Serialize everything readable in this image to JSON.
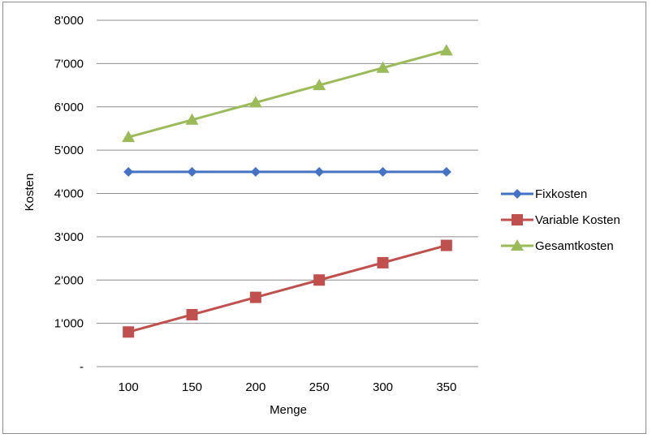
{
  "chart_data": {
    "type": "line",
    "categories": [
      "100",
      "150",
      "200",
      "250",
      "300",
      "350"
    ],
    "series": [
      {
        "name": "Fixkosten",
        "values": [
          4500,
          4500,
          4500,
          4500,
          4500,
          4500
        ],
        "color": "#4472c4",
        "marker": "diamond"
      },
      {
        "name": "Variable Kosten",
        "values": [
          800,
          1200,
          1600,
          2000,
          2400,
          2800
        ],
        "color": "#c0504d",
        "marker": "square"
      },
      {
        "name": "Gesamtkosten",
        "values": [
          5300,
          5700,
          6100,
          6500,
          6900,
          7300
        ],
        "color": "#9bbb59",
        "marker": "triangle"
      }
    ],
    "xlabel": "Menge",
    "ylabel": "Kosten",
    "ylim": [
      0,
      8000
    ],
    "yticks": [
      0,
      1000,
      2000,
      3000,
      4000,
      5000,
      6000,
      7000,
      8000
    ],
    "ytick_labels": [
      "-",
      "1'000",
      "2'000",
      "3'000",
      "4'000",
      "5'000",
      "6'000",
      "7'000",
      "8'000"
    ],
    "grid": "horizontal",
    "legend_position": "right"
  }
}
